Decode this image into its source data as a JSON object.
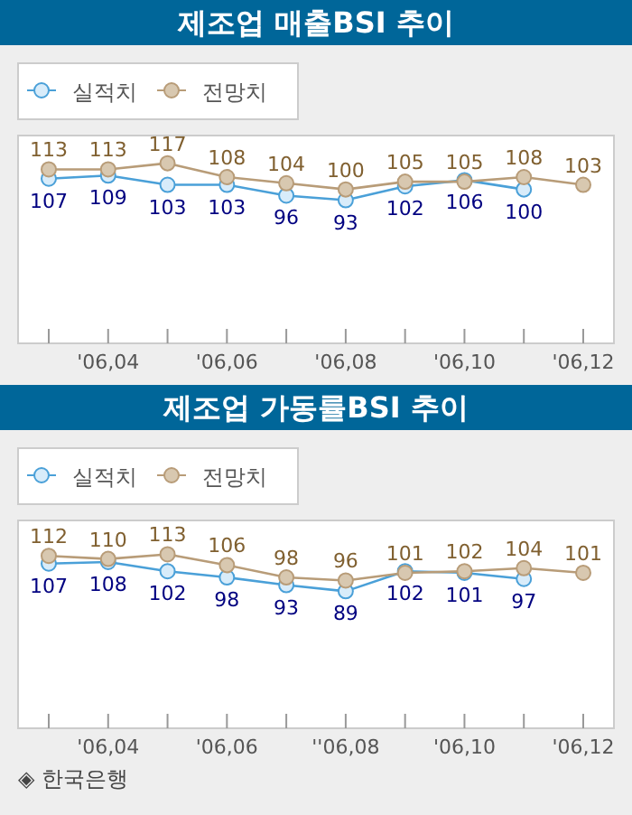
{
  "chart_data": [
    {
      "type": "line",
      "title": "제조업 매출BSI 추이",
      "categories": [
        null,
        "'06,04",
        null,
        "'06,06",
        null,
        "'06,08",
        null,
        "'06,10",
        null,
        "'06,12"
      ],
      "ylim": [
        0,
        135
      ],
      "tick_labels": "x",
      "legend": "top left",
      "marker": "circle",
      "data_labels": true,
      "series": [
        {
          "name": "실적치",
          "color": "#4aa0d8",
          "values": [
            107,
            109,
            103,
            103,
            96,
            93,
            102,
            106,
            100,
            null
          ]
        },
        {
          "name": "전망치",
          "color": "#b89c78",
          "values": [
            113,
            113,
            117,
            108,
            104,
            100,
            105,
            105,
            108,
            103
          ]
        }
      ]
    },
    {
      "type": "line",
      "title": "제조업 가동률BSI 추이",
      "categories": [
        null,
        "'06,04",
        null,
        "'06,06",
        null,
        "''06,08",
        null,
        "'06,10",
        null,
        "'06,12"
      ],
      "ylim": [
        0,
        135
      ],
      "tick_labels": "x",
      "legend": "top left",
      "marker": "circle",
      "data_labels": true,
      "annotations": [
        "◈ 한국은행"
      ],
      "series": [
        {
          "name": "실적치",
          "color": "#4aa0d8",
          "values": [
            107,
            108,
            102,
            98,
            93,
            89,
            102,
            101,
            97,
            null
          ]
        },
        {
          "name": "전망치",
          "color": "#b89c78",
          "values": [
            112,
            110,
            113,
            106,
            98,
            96,
            101,
            102,
            104,
            101
          ]
        }
      ]
    }
  ]
}
